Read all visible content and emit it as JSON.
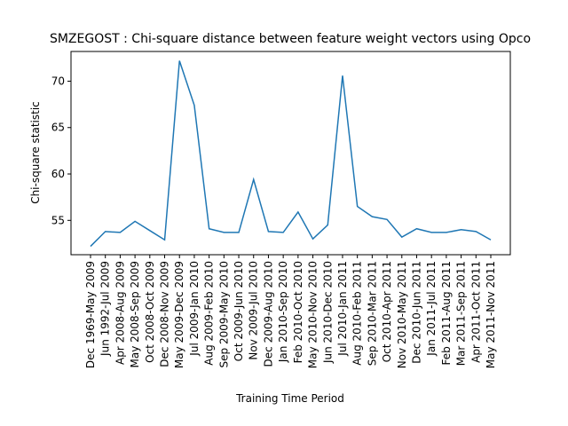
{
  "chart_data": {
    "type": "line",
    "title": "SMZEGOST : Chi-square distance between feature weight vectors using Opco",
    "xlabel": "Training Time Period",
    "ylabel": "Chi-square statistic",
    "categories": [
      "Dec 1969-May 2009",
      "Jun 1992-Jul 2009",
      "Apr 2008-Aug 2009",
      "May 2008-Sep 2009",
      "Oct 2008-Oct 2009",
      "Dec 2008-Nov 2009",
      "May 2009-Dec 2009",
      "Jul 2009-Jan 2010",
      "Aug 2009-Feb 2010",
      "Sep 2009-May 2010",
      "Oct 2009-Jun 2010",
      "Nov 2009-Jul 2010",
      "Dec 2009-Aug 2010",
      "Jan 2010-Sep 2010",
      "Feb 2010-Oct 2010",
      "May 2010-Nov 2010",
      "Jun 2010-Dec 2010",
      "Jul 2010-Jan 2011",
      "Aug 2010-Feb 2011",
      "Sep 2010-Mar 2011",
      "Oct 2010-Apr 2011",
      "Nov 2010-May 2011",
      "Dec 2010-Jun 2011",
      "Jan 2011-Jul 2011",
      "Feb 2011-Aug 2011",
      "Mar 2011-Sep 2011",
      "Apr 2011-Oct 2011",
      "May 2011-Nov 2011"
    ],
    "values": [
      52.2,
      53.8,
      53.7,
      54.9,
      53.9,
      52.9,
      72.2,
      67.4,
      54.1,
      53.7,
      53.7,
      59.4,
      53.8,
      53.7,
      55.9,
      53.0,
      54.5,
      70.6,
      56.5,
      55.4,
      55.1,
      53.2,
      54.1,
      53.7,
      53.7,
      54.0,
      53.8,
      52.9
    ],
    "color": "#1f77b4",
    "ylim": [
      51.3,
      73.2
    ],
    "yticks": [
      55,
      60,
      65,
      70
    ]
  }
}
